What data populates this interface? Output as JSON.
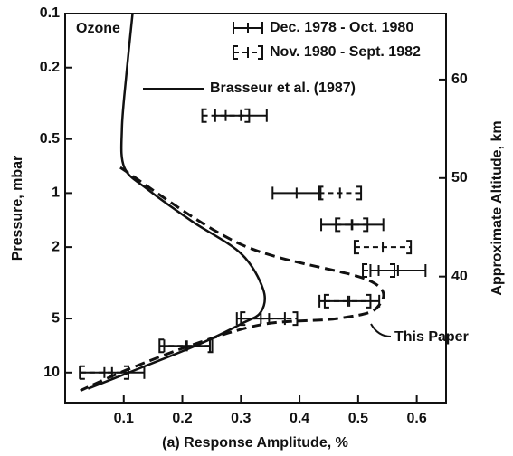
{
  "chart_data": {
    "type": "line",
    "label": "Ozone",
    "xlabel": "(a) Response Amplitude, %",
    "ylabel": "Pressure, mbar",
    "y2label": "Approximate Altitude, km",
    "xlim": [
      0,
      0.65
    ],
    "xticks": [
      0.1,
      0.2,
      0.3,
      0.4,
      0.5,
      0.6
    ],
    "ylim": [
      0.1,
      14.7
    ],
    "ylog": true,
    "yinvert": true,
    "yticks": [
      0.1,
      0.2,
      0.5,
      1,
      2,
      5,
      10
    ],
    "y2lim": [
      27.2,
      66.7
    ],
    "y2ticks": [
      40,
      50,
      60
    ],
    "color": "#111111",
    "series": [
      {
        "name": "Brasseur et al. (1987)",
        "style": "solid",
        "x": [
          0.115,
          0.105,
          0.097,
          0.101,
          0.142,
          0.217,
          0.3,
          0.338,
          0.334,
          0.3,
          0.231,
          0.135,
          0.039
        ],
        "y": [
          0.1,
          0.21,
          0.43,
          0.72,
          0.96,
          1.44,
          2.17,
          3.44,
          4.6,
          5.36,
          6.9,
          9.24,
          12.3
        ]
      },
      {
        "name": "This Paper",
        "style": "dashed",
        "x": [
          0.094,
          0.3,
          0.519,
          0.532,
          0.464,
          0.341,
          0.231,
          0.108,
          0.026
        ],
        "y": [
          0.72,
          1.93,
          3.07,
          4.35,
          5.0,
          5.36,
          6.76,
          9.57,
          12.6
        ]
      }
    ],
    "errorbars": [
      {
        "name": "Dec. 1978 - Oct. 1980",
        "style": "solid",
        "x": [
          0.3,
          0.395,
          0.49,
          0.568,
          0.485,
          0.334,
          0.208,
          0.08
        ],
        "xerr": [
          0.044,
          0.041,
          0.053,
          0.047,
          0.051,
          0.041,
          0.039,
          0.055
        ],
        "y": [
          0.37,
          1.0,
          1.5,
          2.7,
          4.0,
          5.0,
          7.1,
          10
        ]
      },
      {
        "name": "Nov. 1980 - Sept. 1982",
        "style": "dashed",
        "x": [
          0.274,
          0.469,
          0.489,
          0.542,
          0.535,
          0.482,
          0.348,
          0.206,
          0.067
        ],
        "xerr": [
          0.04,
          0.036,
          0.027,
          0.048,
          0.027,
          0.039,
          0.048,
          0.045,
          0.041
        ],
        "y": [
          0.37,
          1.0,
          1.5,
          2.0,
          2.7,
          4.0,
          5.0,
          7.1,
          10
        ]
      }
    ]
  }
}
